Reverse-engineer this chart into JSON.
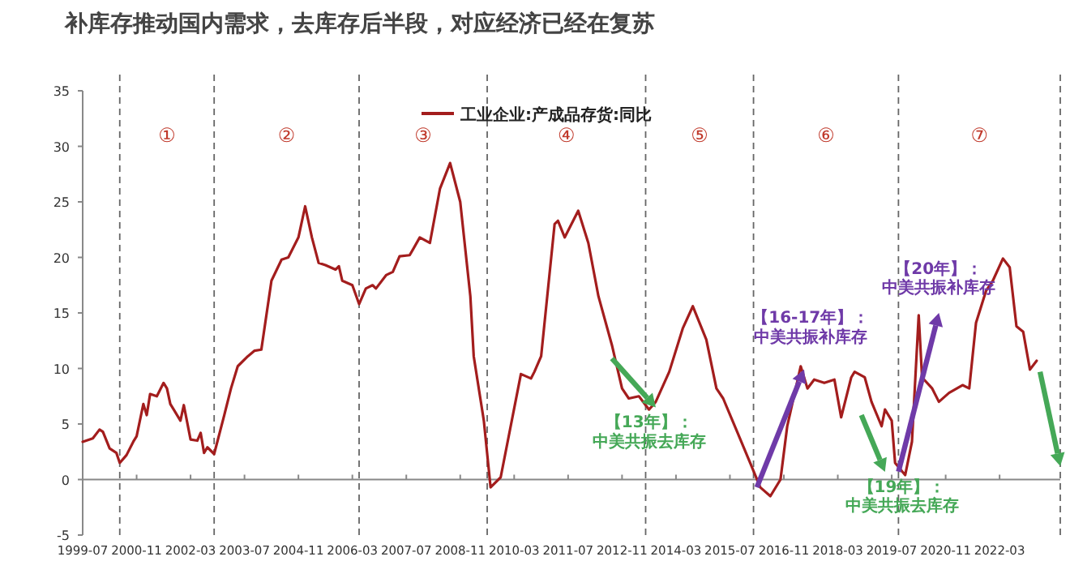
{
  "chart_data": {
    "type": "line",
    "title": "补库存推动国内需求，去库存后半段，对应经济已经在复苏",
    "x": [
      "1999-07",
      "1999-10",
      "1999-12",
      "2000-01",
      "2000-03",
      "2000-05",
      "2000-06",
      "2000-08",
      "2000-10",
      "2000-11",
      "2001-01",
      "2001-02",
      "2001-03",
      "2001-05",
      "2001-07",
      "2001-08",
      "2001-09",
      "2001-10",
      "2001-12",
      "2002-01",
      "2002-03",
      "2002-05",
      "2002-06",
      "2002-07",
      "2002-08",
      "2002-10",
      "2003-01",
      "2003-03",
      "2003-05",
      "2003-08",
      "2003-10",
      "2003-12",
      "2004-03",
      "2004-06",
      "2004-08",
      "2004-11",
      "2005-01",
      "2005-03",
      "2005-05",
      "2005-07",
      "2005-10",
      "2005-11",
      "2005-12",
      "2006-03",
      "2006-05",
      "2006-07",
      "2006-09",
      "2006-10",
      "2007-01",
      "2007-03",
      "2007-05",
      "2007-08",
      "2007-11",
      "2008-02",
      "2008-05",
      "2008-08",
      "2008-11",
      "2009-02",
      "2009-03",
      "2009-06",
      "2009-08",
      "2009-11",
      "2010-05",
      "2010-08",
      "2010-09",
      "2010-11",
      "2011-03",
      "2011-04",
      "2011-06",
      "2011-10",
      "2012-01",
      "2012-04",
      "2012-08",
      "2012-11",
      "2013-01",
      "2013-04",
      "2013-07",
      "2013-09",
      "2014-01",
      "2014-05",
      "2014-08",
      "2014-12",
      "2015-03",
      "2015-05",
      "2015-09",
      "2016-01",
      "2016-04",
      "2016-07",
      "2016-10",
      "2016-12",
      "2017-04",
      "2017-06",
      "2017-08",
      "2017-11",
      "2018-02",
      "2018-04",
      "2018-07",
      "2018-08",
      "2018-11",
      "2019-01",
      "2019-04",
      "2019-05",
      "2019-07",
      "2019-08",
      "2019-11",
      "2020-01",
      "2020-03",
      "2020-04",
      "2020-07",
      "2020-09",
      "2020-12",
      "2021-04",
      "2021-06",
      "2021-08",
      "2021-11",
      "2022-01",
      "2022-04",
      "2022-06",
      "2022-08",
      "2022-10",
      "2022-12",
      "2023-02"
    ],
    "series": [
      {
        "name": "工业企业:产成品存货:同比",
        "color": "#a31d1d",
        "values": [
          3.4,
          3.7,
          4.5,
          4.3,
          2.8,
          2.4,
          1.5,
          2.2,
          3.4,
          3.9,
          6.8,
          5.8,
          7.7,
          7.5,
          8.7,
          8.2,
          6.8,
          6.3,
          5.3,
          6.7,
          3.6,
          3.5,
          4.2,
          2.4,
          2.9,
          2.3,
          5.8,
          8.2,
          10.2,
          11.1,
          11.6,
          11.7,
          17.9,
          19.8,
          20,
          21.8,
          24.6,
          21.8,
          19.5,
          19.3,
          18.9,
          19.2,
          17.9,
          17.5,
          15.8,
          17.2,
          17.5,
          17.2,
          18.4,
          18.7,
          20.1,
          20.2,
          21.8,
          21.3,
          26.2,
          28.5,
          25,
          16.5,
          11.1,
          5.3,
          -0.7,
          0.2,
          9.5,
          9.1,
          9.7,
          11.1,
          23,
          23.3,
          21.8,
          24.2,
          21.3,
          16.5,
          12.1,
          8.2,
          7.3,
          7.5,
          6.3,
          7,
          9.7,
          13.6,
          15.6,
          12.6,
          8.2,
          7.3,
          4.4,
          1.5,
          -0.7,
          -1.5,
          0,
          4.8,
          10.2,
          8.2,
          9,
          8.7,
          9,
          5.6,
          9.2,
          9.7,
          9.2,
          7,
          4.8,
          6.3,
          5.3,
          1.5,
          0.4,
          3.4,
          14.8,
          9.2,
          8.2,
          7,
          7.8,
          8.5,
          8.2,
          14.1,
          17,
          17.9,
          19.9,
          19.1,
          13.8,
          13.3,
          9.9,
          10.7
        ]
      }
    ],
    "xlim": [
      "1999-07",
      "2023-09"
    ],
    "xticks": [
      "1999-07",
      "2000-11",
      "2002-03",
      "2003-07",
      "2004-11",
      "2006-03",
      "2007-07",
      "2008-11",
      "2010-03",
      "2011-07",
      "2012-11",
      "2014-03",
      "2015-07",
      "2016-11",
      "2018-03",
      "2019-07",
      "2020-11",
      "2022-03"
    ],
    "ylim": [
      -5,
      35
    ],
    "yticks": [
      -5,
      0,
      5,
      10,
      15,
      20,
      25,
      30,
      35
    ],
    "legend": "top",
    "grid": false,
    "line_style": "solid",
    "marker": "none",
    "ref_lines": [
      {
        "axis": "y",
        "value": 0,
        "line_style": "solid",
        "color": "#888888"
      },
      {
        "axis": "x",
        "value": "2000-06",
        "line_style": "dashed",
        "color": "#666666"
      },
      {
        "axis": "x",
        "value": "2002-10",
        "line_style": "dashed",
        "color": "#666666"
      },
      {
        "axis": "x",
        "value": "2006-05",
        "line_style": "dashed",
        "color": "#666666"
      },
      {
        "axis": "x",
        "value": "2009-07",
        "line_style": "dashed",
        "color": "#666666"
      },
      {
        "axis": "x",
        "value": "2013-06",
        "line_style": "dashed",
        "color": "#666666"
      },
      {
        "axis": "x",
        "value": "2016-02",
        "line_style": "dashed",
        "color": "#666666"
      },
      {
        "axis": "x",
        "value": "2019-09",
        "line_style": "dashed",
        "color": "#666666"
      },
      {
        "axis": "x",
        "value": "2023-09",
        "line_style": "dashed",
        "color": "#666666"
      }
    ],
    "annotations": [
      "①",
      "②",
      "③",
      "④",
      "⑤",
      "⑥",
      "⑦",
      "【13年】：",
      "中美共振去库存",
      "【16-17年】：",
      "中美共振补库存",
      "【19年】：",
      "中美共振去库存",
      "【20年】：",
      "中美共振补库存"
    ]
  }
}
